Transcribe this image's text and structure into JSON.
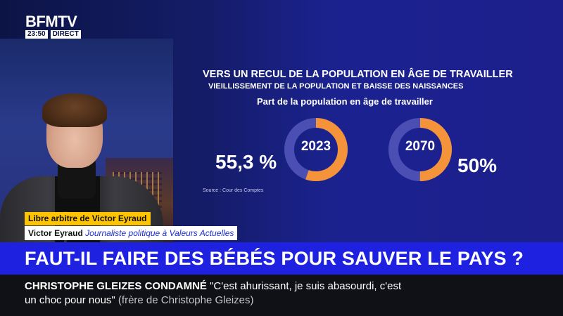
{
  "channel": {
    "logo": "BFMTV",
    "time": "23:50",
    "live": "DIRECT"
  },
  "infographic": {
    "title": "VERS UN RECUL DE LA POPULATION EN ÂGE DE TRAVAILLER",
    "subtitle": "VIEILLISSEMENT DE LA POPULATION ET BAISSE DES NAISSANCES",
    "heading": "Part de la population en âge de travailler",
    "source": "Source : Cour des Comptes",
    "colors": {
      "share": "#f4933a",
      "rest": "#4b4fb4"
    }
  },
  "chart_data": [
    {
      "type": "pie",
      "categories": [
        "2023"
      ],
      "values": [
        55.3
      ],
      "label": "55,3 %",
      "center_label": "2023"
    },
    {
      "type": "pie",
      "categories": [
        "2070"
      ],
      "values": [
        50
      ],
      "label": "50%",
      "center_label": "2070"
    }
  ],
  "lower_third": {
    "program": "Libre arbitre de Victor Eyraud",
    "name": "Victor Eyraud",
    "role": "Journaliste politique à Valeurs Actuelles"
  },
  "headline": "FAUT-IL FAIRE DES BÉBÉS POUR SAUVER LE PAYS ?",
  "ticker": {
    "topic": "CHRISTOPHE GLEIZES CONDAMNÉ",
    "quote_start": "\"C'est ahurissant, je suis abasourdi, c'est",
    "quote_end": "un choc pour nous\"",
    "attribution": "(frère de Christophe Gleizes)"
  }
}
